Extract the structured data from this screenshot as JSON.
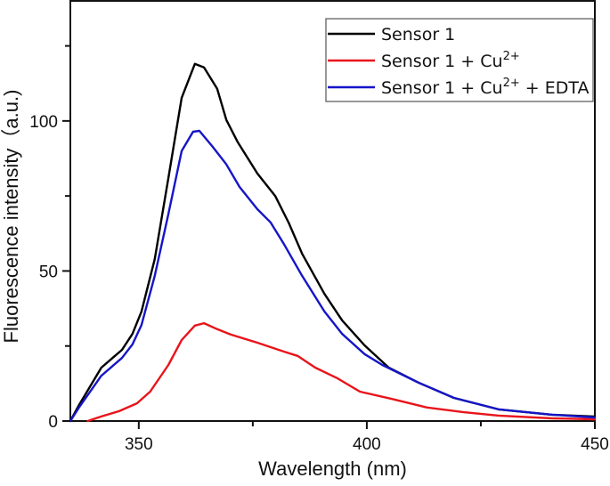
{
  "chart_data": {
    "type": "line",
    "title": "",
    "xlabel": "Wavelength (nm)",
    "ylabel": "Fluorescence intensity（a.u.)",
    "xlim": [
      335,
      450
    ],
    "ylim": [
      0,
      140
    ],
    "x_ticks": [
      350,
      400,
      450
    ],
    "x_minor_ticks": [
      375,
      425
    ],
    "y_ticks": [
      0,
      50,
      100
    ],
    "y_minor_ticks": [
      25,
      75,
      125
    ],
    "grid": false,
    "legend_position": "top-right",
    "series": [
      {
        "name": "Sensor 1",
        "legend_base": "Sensor 1",
        "legend_sup": "",
        "legend_suffix": "",
        "color": "#000000",
        "x": [
          335,
          336.9,
          341.8,
          346.3,
          348.6,
          350.6,
          353.5,
          356.5,
          359.4,
          362.3,
          364.3,
          367.2,
          369.2,
          371.7,
          376,
          379.9,
          382.9,
          385.8,
          390.7,
          394.6,
          399.5,
          404.8,
          411.3,
          419.1,
          428.9,
          440.6,
          450
        ],
        "y": [
          0,
          5.3,
          17.8,
          23.7,
          29,
          36.5,
          54,
          81,
          107.7,
          119,
          117.8,
          110.7,
          100.3,
          92.9,
          82.5,
          75,
          66,
          55.8,
          42.4,
          33.5,
          25.2,
          17.8,
          12.8,
          7.7,
          3.9,
          2.1,
          1.5
        ]
      },
      {
        "name": "Sensor 1 + Cu2+",
        "legend_base": "Sensor 1 + Cu",
        "legend_sup": "2+",
        "legend_suffix": "",
        "color": "#e8141b",
        "x": [
          338.8,
          341.8,
          345.7,
          349.6,
          352.5,
          356.5,
          359.4,
          362.3,
          364.3,
          367.2,
          370.2,
          376,
          381.9,
          384.8,
          388.7,
          393.6,
          398.5,
          405.4,
          413.2,
          421,
          428.9,
          440.6,
          450
        ],
        "y": [
          0,
          1.5,
          3.3,
          5.9,
          9.8,
          18.7,
          27,
          31.8,
          32.6,
          30.6,
          28.8,
          26.1,
          23.1,
          21.7,
          17.8,
          14.2,
          9.8,
          7.4,
          4.5,
          3.0,
          1.8,
          0.9,
          0.6
        ]
      },
      {
        "name": "Sensor 1 + Cu2+ + EDTA",
        "legend_base": "Sensor 1 + Cu",
        "legend_sup": "2+",
        "legend_suffix": " + EDTA",
        "color": "#1515c8",
        "x": [
          335,
          336.9,
          341.8,
          346.3,
          348.6,
          350.6,
          353.5,
          356.5,
          359.4,
          361.9,
          363.3,
          366.2,
          369.2,
          372.1,
          376,
          378.9,
          381.9,
          385.8,
          390.7,
          394.6,
          399.5,
          403.4,
          411.3,
          419.1,
          428.9,
          440.6,
          450
        ],
        "y": [
          0,
          4.5,
          15.1,
          21,
          25.5,
          32,
          48.4,
          69,
          90,
          96.4,
          96.7,
          91.4,
          85.5,
          78,
          70.6,
          66.2,
          58.8,
          48.4,
          36.5,
          29,
          22.3,
          18.7,
          12.8,
          7.7,
          3.9,
          2.1,
          1.2
        ]
      }
    ]
  }
}
